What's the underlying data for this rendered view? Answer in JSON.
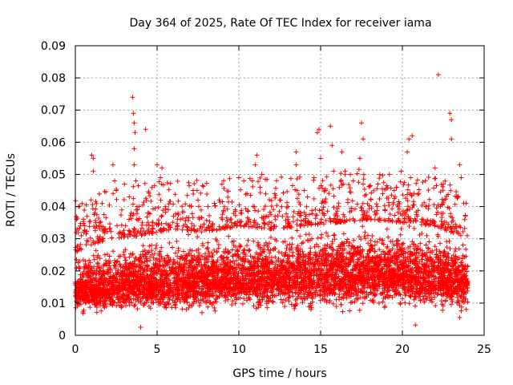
{
  "chart_data": {
    "type": "scatter",
    "title": "Day 364 of 2025, Rate Of TEC Index for receiver iama",
    "xlabel": "GPS time / hours",
    "ylabel": "ROTI / TECUs",
    "xlim": [
      0,
      25
    ],
    "ylim": [
      0,
      0.09
    ],
    "x_ticks": [
      "0",
      "5",
      "10",
      "15",
      "20",
      "25"
    ],
    "y_ticks": [
      "0",
      "0.01",
      "0.02",
      "0.03",
      "0.04",
      "0.05",
      "0.06",
      "0.07",
      "0.08",
      "0.09"
    ],
    "grid": true,
    "marker": "plus",
    "series_color": "#ff0000",
    "series": [
      {
        "name": "ROTI",
        "points": [
          [
            0.2,
            0.04
          ],
          [
            0.3,
            0.034
          ],
          [
            0.5,
            0.032
          ],
          [
            1.0,
            0.056
          ],
          [
            1.1,
            0.055
          ],
          [
            1.1,
            0.051
          ],
          [
            1.2,
            0.038
          ],
          [
            1.5,
            0.035
          ],
          [
            2.3,
            0.053
          ],
          [
            2.4,
            0.048
          ],
          [
            2.5,
            0.045
          ],
          [
            3.0,
            0.047
          ],
          [
            3.3,
            0.043
          ],
          [
            3.5,
            0.074
          ],
          [
            3.55,
            0.069
          ],
          [
            3.6,
            0.066
          ],
          [
            3.65,
            0.063
          ],
          [
            3.6,
            0.058
          ],
          [
            3.6,
            0.053
          ],
          [
            3.7,
            0.048
          ],
          [
            3.9,
            0.04
          ],
          [
            4.3,
            0.064
          ],
          [
            4.0,
            0.0025
          ],
          [
            4.5,
            0.038
          ],
          [
            5.0,
            0.053
          ],
          [
            5.3,
            0.052
          ],
          [
            5.2,
            0.049
          ],
          [
            5.5,
            0.04
          ],
          [
            6.0,
            0.037
          ],
          [
            7.2,
            0.045
          ],
          [
            7.5,
            0.042
          ],
          [
            8.5,
            0.041
          ],
          [
            9.0,
            0.036
          ],
          [
            10.0,
            0.049
          ],
          [
            10.3,
            0.048
          ],
          [
            10.5,
            0.044
          ],
          [
            11.0,
            0.053
          ],
          [
            11.1,
            0.056
          ],
          [
            11.4,
            0.05
          ],
          [
            11.3,
            0.046
          ],
          [
            12.2,
            0.044
          ],
          [
            12.5,
            0.042
          ],
          [
            13.0,
            0.04
          ],
          [
            13.5,
            0.057
          ],
          [
            13.5,
            0.053
          ],
          [
            14.0,
            0.045
          ],
          [
            14.2,
            0.043
          ],
          [
            14.6,
            0.049
          ],
          [
            14.8,
            0.063
          ],
          [
            14.9,
            0.064
          ],
          [
            15.0,
            0.055
          ],
          [
            15.3,
            0.045
          ],
          [
            15.6,
            0.065
          ],
          [
            15.7,
            0.059
          ],
          [
            15.8,
            0.051
          ],
          [
            16.3,
            0.057
          ],
          [
            16.5,
            0.05
          ],
          [
            17.0,
            0.048
          ],
          [
            17.5,
            0.066
          ],
          [
            17.6,
            0.061
          ],
          [
            17.4,
            0.055
          ],
          [
            17.6,
            0.047
          ],
          [
            18.5,
            0.047
          ],
          [
            18.8,
            0.044
          ],
          [
            19.2,
            0.05
          ],
          [
            19.5,
            0.045
          ],
          [
            20.3,
            0.057
          ],
          [
            20.4,
            0.061
          ],
          [
            20.6,
            0.062
          ],
          [
            20.5,
            0.049
          ],
          [
            21.0,
            0.044
          ],
          [
            21.4,
            0.048
          ],
          [
            22.2,
            0.081
          ],
          [
            22.0,
            0.052
          ],
          [
            22.5,
            0.047
          ],
          [
            22.9,
            0.069
          ],
          [
            23.0,
            0.067
          ],
          [
            23.0,
            0.061
          ],
          [
            23.5,
            0.053
          ],
          [
            23.6,
            0.049
          ],
          [
            23.9,
            0.041
          ],
          [
            20.8,
            0.0032
          ],
          [
            23.5,
            0.0055
          ],
          [
            0.1,
            0.026
          ]
        ]
      }
    ],
    "band": {
      "description": "dense continuous cloud of samples every ~0.005 h",
      "x_range": [
        0,
        24
      ],
      "lower_envelope": [
        [
          0,
          0.006
        ],
        [
          5,
          0.006
        ],
        [
          10,
          0.007
        ],
        [
          15,
          0.006
        ],
        [
          20,
          0.007
        ],
        [
          24,
          0.006
        ]
      ],
      "upper_envelope": [
        [
          0,
          0.026
        ],
        [
          2,
          0.03
        ],
        [
          4,
          0.031
        ],
        [
          6,
          0.033
        ],
        [
          8,
          0.032
        ],
        [
          10,
          0.034
        ],
        [
          12,
          0.033
        ],
        [
          14,
          0.034
        ],
        [
          16,
          0.035
        ],
        [
          18,
          0.036
        ],
        [
          20,
          0.035
        ],
        [
          22,
          0.034
        ],
        [
          24,
          0.03
        ]
      ],
      "median": [
        [
          0,
          0.014
        ],
        [
          4,
          0.016
        ],
        [
          8,
          0.017
        ],
        [
          12,
          0.018
        ],
        [
          16,
          0.019
        ],
        [
          20,
          0.019
        ],
        [
          24,
          0.017
        ]
      ]
    }
  }
}
